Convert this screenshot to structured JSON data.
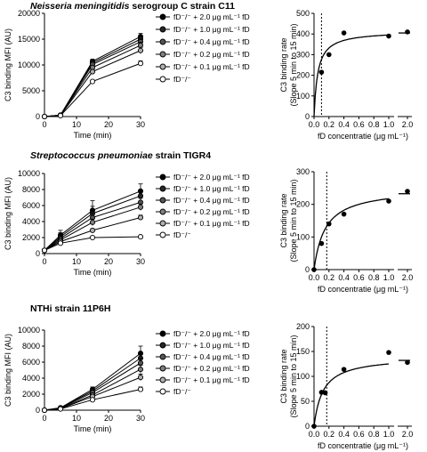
{
  "chart_data": [
    {
      "type": "line",
      "title": "Neisseria meningitidis serogroup C strain C11",
      "title_italic": "Neisseria meningitidis",
      "title_rest": " serogroup C strain C11",
      "xlabel": "Time (min)",
      "ylabel": "C3 binding MFI (AU)",
      "x": [
        0,
        5,
        15,
        30
      ],
      "xlim": [
        0,
        30
      ],
      "ylim": [
        0,
        20000
      ],
      "xticks": [
        "0",
        "10",
        "20",
        "30"
      ],
      "yticks": [
        "0",
        "5000",
        "10000",
        "15000",
        "20000"
      ],
      "legend_position": "right",
      "series": [
        {
          "name": "fD⁻/⁻ + 2.0 μg mL⁻¹ fD",
          "values": [
            0,
            300,
            10700,
            15500
          ],
          "color": "#000000",
          "err": [
            0,
            150,
            400,
            600
          ]
        },
        {
          "name": "fD⁻/⁻ + 1.0 μg mL⁻¹ fD",
          "values": [
            0,
            280,
            10400,
            15000
          ],
          "color": "#262626",
          "err": [
            0,
            150,
            400,
            600
          ]
        },
        {
          "name": "fD⁻/⁻ + 0.4 μg mL⁻¹ fD",
          "values": [
            0,
            260,
            10100,
            14500
          ],
          "color": "#555555",
          "err": [
            0,
            150,
            400,
            600
          ]
        },
        {
          "name": "fD⁻/⁻ + 0.2 μg mL⁻¹ fD",
          "values": [
            0,
            240,
            9500,
            13800
          ],
          "color": "#7f7f7f",
          "err": [
            0,
            150,
            400,
            600
          ]
        },
        {
          "name": "fD⁻/⁻ + 0.1 μg mL⁻¹ fD",
          "values": [
            0,
            220,
            8700,
            12800
          ],
          "color": "#b0b0b0",
          "err": [
            0,
            150,
            400,
            600
          ]
        },
        {
          "name": "fD⁻/⁻",
          "values": [
            0,
            180,
            6800,
            10300
          ],
          "color": "#ffffff",
          "err": [
            0,
            100,
            300,
            500
          ]
        }
      ]
    },
    {
      "type": "scatter",
      "title": "",
      "xlabel": "fD concentratie (μg mL⁻¹)",
      "ylabel": "C3 binding rate (Slope 5 min to 15 min)",
      "xticks": [
        "0.0",
        "0.2",
        "0.4",
        "0.6",
        "0.8",
        "1.0",
        "2.0"
      ],
      "yticks": [
        "0",
        "100",
        "200",
        "300",
        "400",
        "500"
      ],
      "ylim": [
        0,
        500
      ],
      "x": [
        0.1,
        0.2,
        0.4,
        1.0,
        2.0
      ],
      "y": [
        215,
        300,
        405,
        390,
        410
      ],
      "fit_ymax": 415,
      "fit_k": 0.05,
      "vline_x": 0.1
    },
    {
      "type": "line",
      "title": "Streptococcus pneumoniae strain TIGR4",
      "title_italic": "Streptococcus pneumoniae",
      "title_rest": " strain TIGR4",
      "xlabel": "Time (min)",
      "ylabel": "C3 binding MFI (AU)",
      "x": [
        0,
        5,
        15,
        30
      ],
      "xlim": [
        0,
        30
      ],
      "ylim": [
        0,
        10000
      ],
      "xticks": [
        "0",
        "10",
        "20",
        "30"
      ],
      "yticks": [
        "0",
        "2000",
        "4000",
        "6000",
        "8000",
        "10000"
      ],
      "legend_position": "right",
      "series": [
        {
          "name": "fD⁻/⁻ + 2.0 μg mL⁻¹ fD",
          "values": [
            400,
            2300,
            5400,
            7800
          ],
          "color": "#000000",
          "err": [
            200,
            600,
            1200,
            900
          ]
        },
        {
          "name": "fD⁻/⁻ + 1.0 μg mL⁻¹ fD",
          "values": [
            400,
            2100,
            5000,
            7200
          ],
          "color": "#262626",
          "err": [
            200,
            500,
            900,
            700
          ]
        },
        {
          "name": "fD⁻/⁻ + 0.4 μg mL⁻¹ fD",
          "values": [
            400,
            1900,
            4500,
            6400
          ],
          "color": "#555555",
          "err": [
            200,
            400,
            600,
            500
          ]
        },
        {
          "name": "fD⁻/⁻ + 0.2 μg mL⁻¹ fD",
          "values": [
            400,
            1700,
            3900,
            5800
          ],
          "color": "#7f7f7f",
          "err": [
            200,
            300,
            400,
            400
          ]
        },
        {
          "name": "fD⁻/⁻ + 0.1 μg mL⁻¹ fD",
          "values": [
            400,
            1500,
            2900,
            4500
          ],
          "color": "#b0b0b0",
          "err": [
            200,
            300,
            200,
            300
          ]
        },
        {
          "name": "fD⁻/⁻",
          "values": [
            400,
            1300,
            2000,
            2100
          ],
          "color": "#ffffff",
          "err": [
            100,
            100,
            100,
            100
          ]
        }
      ]
    },
    {
      "type": "scatter",
      "title": "",
      "xlabel": "fD concentratie (μg mL⁻¹)",
      "ylabel": "C3 binding rate (Slope 5 min to 15 min)",
      "xticks": [
        "0.0",
        "0.2",
        "0.4",
        "0.6",
        "0.8",
        "1.0",
        "2.0"
      ],
      "yticks": [
        "0",
        "100",
        "200",
        "300"
      ],
      "ylim": [
        0,
        300
      ],
      "x": [
        0.0,
        0.1,
        0.2,
        0.4,
        1.0,
        2.0
      ],
      "y": [
        0,
        80,
        140,
        170,
        210,
        240
      ],
      "fit_ymax": 250,
      "fit_k": 0.15,
      "vline_x": 0.17
    },
    {
      "type": "line",
      "title": "NTHi strain 11P6H",
      "title_italic": "",
      "title_rest": "NTHi strain 11P6H",
      "xlabel": "Time (min)",
      "ylabel": "C3 binding MFI (AU)",
      "x": [
        0,
        5,
        15,
        30
      ],
      "xlim": [
        0,
        30
      ],
      "ylim": [
        0,
        10000
      ],
      "xticks": [
        "0",
        "10",
        "20",
        "30"
      ],
      "yticks": [
        "0",
        "2000",
        "4000",
        "6000",
        "8000",
        "10000"
      ],
      "legend_position": "right",
      "series": [
        {
          "name": "fD⁻/⁻ + 2.0 μg mL⁻¹ fD",
          "values": [
            0,
            300,
            2600,
            7100
          ],
          "color": "#000000",
          "err": [
            0,
            100,
            300,
            900
          ]
        },
        {
          "name": "fD⁻/⁻ + 1.0 μg mL⁻¹ fD",
          "values": [
            0,
            280,
            2400,
            6500
          ],
          "color": "#262626",
          "err": [
            0,
            100,
            300,
            700
          ]
        },
        {
          "name": "fD⁻/⁻ + 0.4 μg mL⁻¹ fD",
          "values": [
            0,
            260,
            2200,
            5900
          ],
          "color": "#555555",
          "err": [
            0,
            100,
            300,
            600
          ]
        },
        {
          "name": "fD⁻/⁻ + 0.2 μg mL⁻¹ fD",
          "values": [
            0,
            230,
            1900,
            5100
          ],
          "color": "#7f7f7f",
          "err": [
            0,
            100,
            250,
            500
          ]
        },
        {
          "name": "fD⁻/⁻ + 0.1 μg mL⁻¹ fD",
          "values": [
            0,
            200,
            1700,
            4100
          ],
          "color": "#b0b0b0",
          "err": [
            0,
            100,
            200,
            400
          ]
        },
        {
          "name": "fD⁻/⁻",
          "values": [
            0,
            150,
            1300,
            2600
          ],
          "color": "#ffffff",
          "err": [
            0,
            100,
            150,
            300
          ]
        }
      ]
    },
    {
      "type": "scatter",
      "title": "",
      "xlabel": "fD concentratie (μg mL⁻¹)",
      "ylabel": "C3 binding rate (Slope 5 min to 15 min)",
      "xticks": [
        "0.0",
        "0.2",
        "0.4",
        "0.6",
        "0.8",
        "1.0",
        "2.0"
      ],
      "yticks": [
        "0",
        "50",
        "100",
        "150",
        "200"
      ],
      "ylim": [
        0,
        200
      ],
      "x": [
        0.0,
        0.1,
        0.15,
        0.4,
        1.0,
        2.0
      ],
      "y": [
        0,
        68,
        67,
        114,
        148,
        128
      ],
      "fit_ymax": 140,
      "fit_k": 0.12,
      "vline_x": 0.17
    }
  ]
}
